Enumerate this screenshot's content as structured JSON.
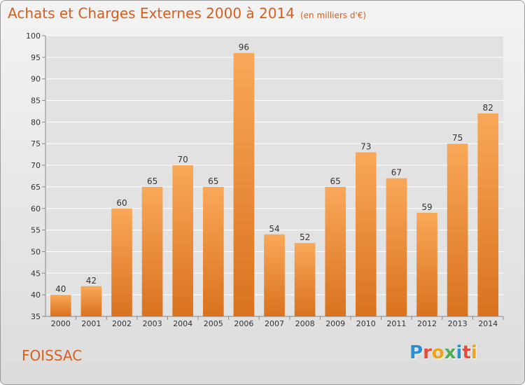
{
  "title": "Achats et Charges Externes 2000 à 2014",
  "subtitle": "(en milliers d'€)",
  "commune": "FOISSAC",
  "logo": {
    "letters": [
      "P",
      "r",
      "o",
      "x",
      "i",
      "t",
      "i"
    ],
    "colors": [
      "#2a8fd0",
      "#e84b3a",
      "#f2a21a",
      "#4caf50",
      "#2a8fd0",
      "#e84b3a",
      "#f2a21a"
    ]
  },
  "colors": {
    "title": "#d65f1e",
    "bar_light": "#f9a859",
    "bar_dark": "#d9721f",
    "grid": "#ffffff",
    "plot_bg": "#e2e2e2"
  },
  "chart_data": {
    "type": "bar",
    "title": "Achats et Charges Externes 2000 à 2014",
    "subtitle": "(en milliers d'€)",
    "categories": [
      "2000",
      "2001",
      "2002",
      "2003",
      "2004",
      "2005",
      "2006",
      "2007",
      "2008",
      "2009",
      "2010",
      "2011",
      "2012",
      "2013",
      "2014"
    ],
    "values": [
      40,
      42,
      60,
      65,
      70,
      65,
      96,
      54,
      52,
      65,
      73,
      67,
      59,
      75,
      82
    ],
    "ylim": [
      35,
      100
    ],
    "yticks": [
      35,
      40,
      45,
      50,
      55,
      60,
      65,
      70,
      75,
      80,
      85,
      90,
      95,
      100
    ],
    "grid": true,
    "data_labels": true
  }
}
